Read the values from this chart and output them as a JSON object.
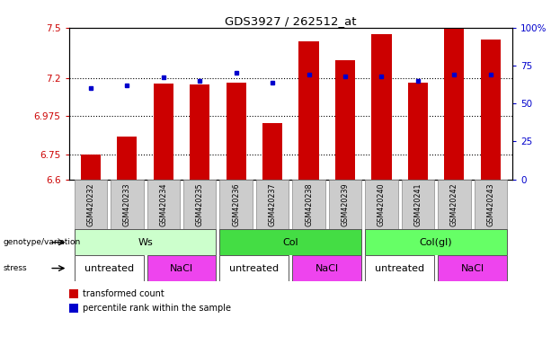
{
  "title": "GDS3927 / 262512_at",
  "samples": [
    "GSM420232",
    "GSM420233",
    "GSM420234",
    "GSM420235",
    "GSM420236",
    "GSM420237",
    "GSM420238",
    "GSM420239",
    "GSM420240",
    "GSM420241",
    "GSM420242",
    "GSM420243"
  ],
  "red_values": [
    6.75,
    6.855,
    7.17,
    7.165,
    7.175,
    6.935,
    7.42,
    7.305,
    7.46,
    7.175,
    7.5,
    7.43
  ],
  "blue_percentile_values": [
    60,
    62,
    67,
    65,
    70,
    64,
    69,
    68,
    68,
    65,
    69,
    69
  ],
  "ylim_left": [
    6.6,
    7.5
  ],
  "yticks_left": [
    6.6,
    6.75,
    6.975,
    7.2,
    7.5
  ],
  "ytick_labels_left": [
    "6.6",
    "6.75",
    "6.975",
    "7.2",
    "7.5"
  ],
  "yticks_right": [
    0,
    25,
    50,
    75,
    100
  ],
  "ytick_labels_right": [
    "0",
    "25",
    "50",
    "75",
    "100%"
  ],
  "bar_bottom": 6.6,
  "genotype_groups": [
    {
      "label": "Ws",
      "start": 0,
      "end": 3,
      "color": "#ccffcc"
    },
    {
      "label": "Col",
      "start": 4,
      "end": 7,
      "color": "#44dd44"
    },
    {
      "label": "Col(gl)",
      "start": 8,
      "end": 11,
      "color": "#66ff66"
    }
  ],
  "stress_groups": [
    {
      "label": "untreated",
      "start": 0,
      "end": 1,
      "color": "#ffffff"
    },
    {
      "label": "NaCl",
      "start": 2,
      "end": 3,
      "color": "#ee44ee"
    },
    {
      "label": "untreated",
      "start": 4,
      "end": 5,
      "color": "#ffffff"
    },
    {
      "label": "NaCl",
      "start": 6,
      "end": 7,
      "color": "#ee44ee"
    },
    {
      "label": "untreated",
      "start": 8,
      "end": 9,
      "color": "#ffffff"
    },
    {
      "label": "NaCl",
      "start": 10,
      "end": 11,
      "color": "#ee44ee"
    }
  ],
  "bar_color": "#cc0000",
  "blue_color": "#0000cc",
  "tick_color_left": "#cc0000",
  "tick_color_right": "#0000cc",
  "bar_width": 0.55,
  "legend_red_label": "transformed count",
  "legend_blue_label": "percentile rank within the sample",
  "sample_box_color": "#cccccc",
  "sample_box_edge": "#888888"
}
